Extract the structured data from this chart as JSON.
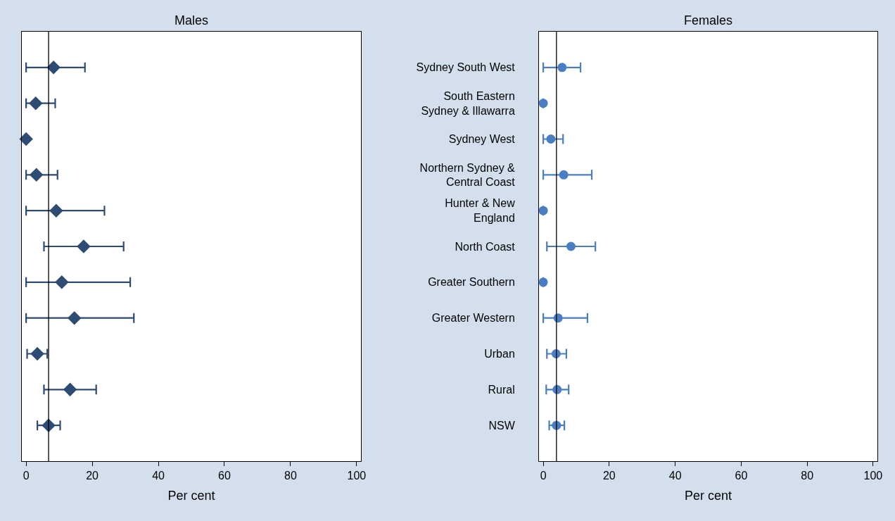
{
  "chart_data": [
    {
      "type": "scatter",
      "orientation": "horizontal",
      "title": "Males",
      "xlabel": "Per cent",
      "categories": [
        null,
        null,
        null,
        null,
        null,
        null,
        null,
        null,
        null,
        null,
        null
      ],
      "series": [
        {
          "color": "#2e4b74",
          "values": [
            8.3,
            2.9,
            0,
            3.1,
            9.1,
            17.4,
            10.8,
            14.6,
            3.4,
            13.3,
            6.8
          ],
          "errors": [
            [
              0,
              17.8
            ],
            [
              0,
              8.8
            ],
            [
              0,
              0
            ],
            [
              0,
              9.5
            ],
            [
              0,
              23.7
            ],
            [
              5.4,
              29.5
            ],
            [
              0,
              31.5
            ],
            [
              0,
              32.6
            ],
            [
              0.3,
              6.4
            ],
            [
              5.4,
              21.2
            ],
            [
              3.4,
              10.3
            ]
          ]
        }
      ],
      "marker": "diamond",
      "xlim": [
        -1.3,
        101.3
      ],
      "xticks": [
        0,
        20,
        40,
        60,
        80,
        100
      ],
      "tick_labels": "x",
      "grid": false,
      "ref_lines": [
        {
          "axis": "x",
          "value": 6.8,
          "color": "#000000"
        }
      ]
    },
    {
      "type": "scatter",
      "orientation": "horizontal",
      "title": "Females",
      "xlabel": "Per cent",
      "categories": [
        "Sydney South West",
        "South Eastern\nSydney & Illawarra",
        "Sydney West",
        "Northern Sydney &\nCentral Coast",
        "Hunter & New\nEngland",
        "North Coast",
        "Greater Southern",
        "Greater Western",
        "Urban",
        "Rural",
        "NSW"
      ],
      "series": [
        {
          "color": "#4a7ec2",
          "values": [
            5.7,
            0,
            2.3,
            6.2,
            0,
            8.4,
            0,
            4.5,
            3.9,
            4.2,
            4.0
          ],
          "errors": [
            [
              0,
              11.3
            ],
            [
              0,
              0
            ],
            [
              0,
              6.0
            ],
            [
              0,
              14.7
            ],
            [
              0,
              0
            ],
            [
              1.1,
              15.8
            ],
            [
              0,
              0
            ],
            [
              0,
              13.4
            ],
            [
              1.1,
              7.0
            ],
            [
              0.9,
              7.7
            ],
            [
              1.8,
              6.4
            ]
          ]
        }
      ],
      "marker": "circle",
      "xlim": [
        -1.3,
        101.3
      ],
      "xticks": [
        0,
        20,
        40,
        60,
        80,
        100
      ],
      "grid": false,
      "ref_lines": [
        {
          "axis": "x",
          "value": 4.0,
          "color": "#000000"
        }
      ]
    }
  ]
}
